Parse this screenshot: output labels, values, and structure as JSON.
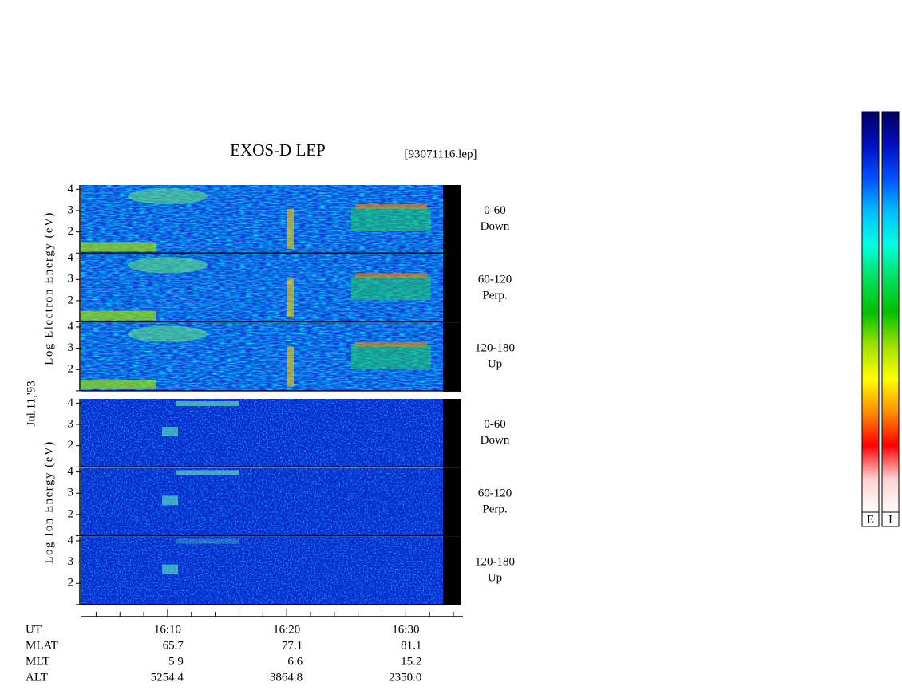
{
  "chart_data": {
    "type": "spectrogram",
    "title": "EXOS-D LEP",
    "subtitle": "[93071116.lep]",
    "date_label": "Jul.11,'93",
    "groups": [
      {
        "ylabel": "Log Electron Energy (eV)",
        "style": "electron",
        "panels": [
          {
            "pitch": "0-60",
            "direction": "Down"
          },
          {
            "pitch": "60-120",
            "direction": "Perp."
          },
          {
            "pitch": "120-180",
            "direction": "Up"
          }
        ]
      },
      {
        "ylabel": "Log Ion Energy (eV)",
        "style": "ion",
        "panels": [
          {
            "pitch": "0-60",
            "direction": "Down"
          },
          {
            "pitch": "60-120",
            "direction": "Perp."
          },
          {
            "pitch": "120-180",
            "direction": "Up"
          }
        ]
      }
    ],
    "ylim": [
      1,
      4.2
    ],
    "yticks": [
      2,
      3,
      4
    ],
    "xlabel": "UT",
    "xlim": [
      2.7,
      34.8
    ],
    "xticks": [
      {
        "value": 10,
        "label": "16:10"
      },
      {
        "value": 20,
        "label": "16:20"
      },
      {
        "value": 30,
        "label": "16:30"
      }
    ],
    "xminorticks": [
      4,
      6,
      8,
      12,
      14,
      16,
      18,
      22,
      24,
      26,
      28,
      32,
      34
    ],
    "ephemeris": [
      {
        "label": "MLAT",
        "values": [
          "65.7",
          "77.1",
          "81.1"
        ]
      },
      {
        "label": "MLT",
        "values": [
          "5.9",
          "6.6",
          "15.2"
        ]
      },
      {
        "label": "ALT",
        "values": [
          "5254.4",
          "3864.8",
          "2350.0"
        ]
      }
    ],
    "colorbar": {
      "labels": [
        "E",
        "I"
      ],
      "colors": [
        "#000060",
        "#0010c0",
        "#0050ff",
        "#00c0ff",
        "#00ffe0",
        "#00e060",
        "#00c000",
        "#a0e000",
        "#ffff00",
        "#ff9000",
        "#ff0000",
        "#ffd0d0",
        "#ffffff"
      ]
    }
  }
}
